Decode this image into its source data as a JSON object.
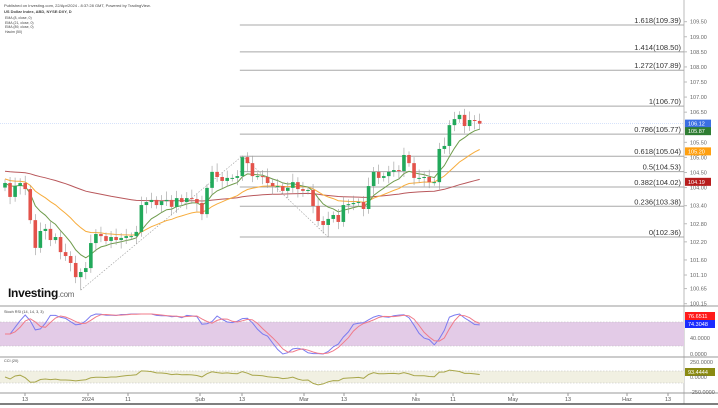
{
  "header": {
    "published": "Published on Investing.com, 22/Apr/2024 - 8:37:28 GMT, Powered by TradingView.",
    "instrument": "US Dollar Index, ABD, NYSE:DXY, D",
    "legend": [
      "EMA (8, close, 0)",
      "EMA (21, close, 0)",
      "EMA (89, close, 0)",
      "Hacim (50)"
    ]
  },
  "logo": {
    "brand": "Investing",
    "suffix": ".com"
  },
  "colors": {
    "up": "#22a95b",
    "down": "#e3534b",
    "ema_fast": "#6f9c4c",
    "ema_mid": "#f7ac3c",
    "ema_slow": "#b9585c",
    "fib_line": "#a8a8a8",
    "last_price": "#3b6fe3",
    "stoch_k": "#7b7bf0",
    "stoch_d": "#f07b8a",
    "stoch_band": "#e3cbe7",
    "cci": "#a8a64a",
    "cci_band": "#f1f0e2"
  },
  "chart_data": {
    "type": "candlestick",
    "closes": [
      104.15,
      103.69,
      104.05,
      104.15,
      103.95,
      102.92,
      102.0,
      102.56,
      102.63,
      102.26,
      102.36,
      101.86,
      101.73,
      101.5,
      101.03,
      101.2,
      101.33,
      102.16,
      102.46,
      102.39,
      102.23,
      102.36,
      102.26,
      102.33,
      102.39,
      102.39,
      102.53,
      103.42,
      103.52,
      103.59,
      103.42,
      103.55,
      103.59,
      103.36,
      103.65,
      103.52,
      103.65,
      103.62,
      103.49,
      103.12,
      103.99,
      104.52,
      104.35,
      104.22,
      104.32,
      104.32,
      104.38,
      105.01,
      104.81,
      104.38,
      104.38,
      104.35,
      104.15,
      104.05,
      104.05,
      103.89,
      103.99,
      104.18,
      103.95,
      103.89,
      103.92,
      103.39,
      102.89,
      102.76,
      102.96,
      103.09,
      102.86,
      103.42,
      103.45,
      103.49,
      103.52,
      103.29,
      104.05,
      104.52,
      104.32,
      104.38,
      104.52,
      104.58,
      104.55,
      105.08,
      104.81,
      104.32,
      104.32,
      104.35,
      104.18,
      104.18,
      105.28,
      105.38,
      106.07,
      106.27,
      106.41,
      106.04,
      106.24,
      106.21,
      106.12
    ],
    "first_open": 104.0,
    "price_axis_ticks": [
      "109.50",
      "109.00",
      "108.50",
      "108.00",
      "107.50",
      "107.00",
      "106.50",
      "105.50",
      "105.00",
      "104.50",
      "104.00",
      "103.40",
      "102.80",
      "102.20",
      "101.60",
      "101.10",
      "100.65",
      "100.15"
    ],
    "price_tags": [
      {
        "label": "106.12",
        "value": 106.12,
        "color": "#3b6fe3"
      },
      {
        "label": "105.87",
        "value": 105.87,
        "color": "#2e7d32"
      },
      {
        "label": "105.20",
        "value": 105.2,
        "color": "#ff9f0f"
      },
      {
        "label": "104.19",
        "value": 104.19,
        "color": "#b71c1c"
      }
    ],
    "fibonacci": [
      {
        "label": "1.618(109.39)",
        "value": 109.39
      },
      {
        "label": "1.414(108.50)",
        "value": 108.5
      },
      {
        "label": "1.272(107.89)",
        "value": 107.89
      },
      {
        "label": "1(106.70)",
        "value": 106.7
      },
      {
        "label": "0.786(105.77)",
        "value": 105.77
      },
      {
        "label": "0.618(105.04)",
        "value": 105.04
      },
      {
        "label": "0.5(104.53)",
        "value": 104.53
      },
      {
        "label": "0.382(104.02)",
        "value": 104.02
      },
      {
        "label": "0.236(103.38)",
        "value": 103.38
      },
      {
        "label": "0(102.36)",
        "value": 102.36
      }
    ],
    "fib_swing_points": [
      100.6,
      105.05,
      102.36
    ],
    "x_labels": [
      "13",
      "2024",
      "11",
      "Şub",
      "13",
      "Mar",
      "13",
      "Nis",
      "11",
      "May",
      "13",
      "Haz",
      "13"
    ],
    "ema_periods": [
      8,
      21,
      89
    ]
  },
  "stoch_rsi": {
    "title": "Stoch RSI (14, 14, 3, 3)",
    "k_value": "76.6511",
    "d_value": "74.3048",
    "k_color": "#ff1a1a",
    "d_color": "#1a2bff",
    "ticks": [
      "40.0000",
      "0.0000"
    ],
    "band": [
      20,
      80
    ]
  },
  "cci": {
    "title": "CCI (20)",
    "value": "93.4444",
    "value_color": "#8a8a12",
    "ticks": [
      "250.0000",
      "0.0000",
      "-250.0000"
    ],
    "band": [
      -100,
      100
    ]
  }
}
